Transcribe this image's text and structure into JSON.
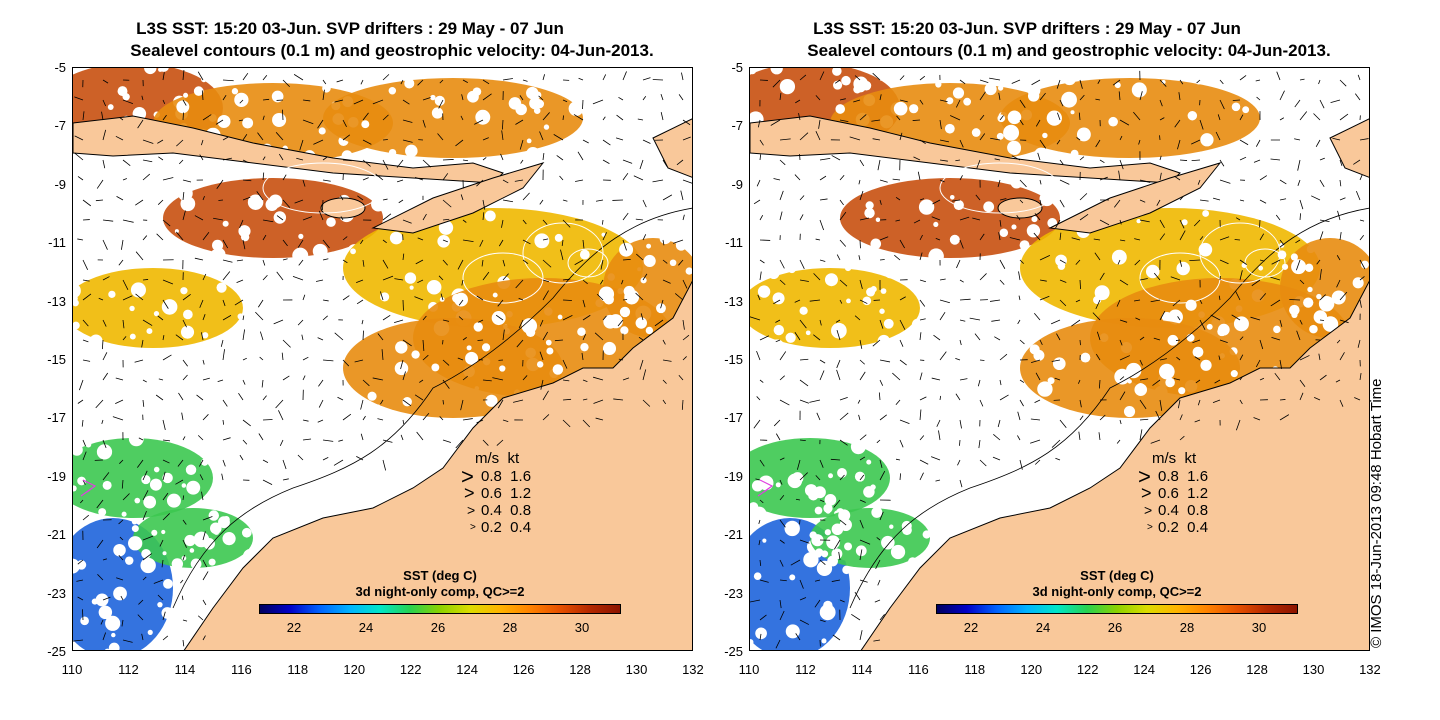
{
  "panels": [
    {
      "title_line1": "L3S SST: 15:20 03-Jun. SVP drifters : 29 May - 07 Jun",
      "title_line2": "Sealevel contours (0.1 m) and geostrophic velocity: 04-Jun-2013."
    },
    {
      "title_line1": "L3S SST: 15:20 03-Jun. SVP drifters : 29 May - 07 Jun",
      "title_line2": "Sealevel contours (0.1 m) and geostrophic velocity: 04-Jun-2013."
    }
  ],
  "axes": {
    "y_ticks": [
      "-5",
      "-7",
      "-9",
      "-11",
      "-13",
      "-15",
      "-17",
      "-19",
      "-21",
      "-23",
      "-25"
    ],
    "x_ticks": [
      "110",
      "112",
      "114",
      "116",
      "118",
      "120",
      "122",
      "124",
      "126",
      "128",
      "130",
      "132"
    ]
  },
  "velocity_legend": {
    "header": "m/s  kt",
    "rows": [
      "0.8  1.6",
      "0.6  1.2",
      "0.4  0.8",
      "0.2  0.4"
    ]
  },
  "colorbar": {
    "title_line1": "SST (deg C)",
    "title_line2": "3d night-only comp, QC>=2",
    "ticks": [
      "22",
      "24",
      "26",
      "28",
      "30"
    ]
  },
  "credit": "© IMOS 18-Jun-2013 09:48 Hobart Time",
  "colors": {
    "land": "#f9c89a",
    "sst_warm": "#e88c10",
    "sst_hot": "#c85010",
    "sst_mid": "#f0b800",
    "sst_cool": "#3cc850",
    "sst_cold": "#1e64dc",
    "drifter": "#e040e0"
  }
}
